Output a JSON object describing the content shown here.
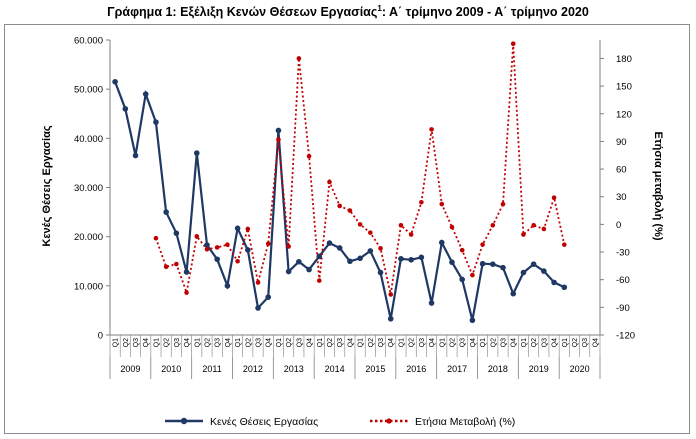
{
  "title": {
    "main": "Γράφημα 1: Εξέλιξη Κενών Θέσεων Εργασίας",
    "sup": "1",
    "rest": ": Α΄ τρίμηνο 2009 - Α΄ τρίμηνο 2020"
  },
  "chart_data": {
    "type": "line",
    "title": "Γράφημα 1: Εξέλιξη Κενών Θέσεων Εργασίας1: Α΄ τρίμηνο 2009 - Α΄ τρίμηνο 2020",
    "ylabel": "Κενές Θέσεις Εργασίας",
    "y2label": "Ετήσια μεταβολή (%)",
    "ylim": [
      0,
      60000
    ],
    "y2lim": [
      -120,
      200
    ],
    "yticks": [
      "0",
      "10.000",
      "20.000",
      "30.000",
      "40.000",
      "50.000",
      "60.000"
    ],
    "y2ticks": [
      "-120",
      "-90",
      "-60",
      "-30",
      "0",
      "30",
      "60",
      "90",
      "120",
      "150",
      "180"
    ],
    "y2tick_values": [
      -120,
      -90,
      -60,
      -30,
      0,
      30,
      60,
      90,
      120,
      150,
      180
    ],
    "quarters": [
      "Q1",
      "Q2",
      "Q3",
      "Q4"
    ],
    "years": [
      "2009",
      "2010",
      "2011",
      "2012",
      "2013",
      "2014",
      "2015",
      "2016",
      "2017",
      "2018",
      "2019",
      "2020"
    ],
    "grid": false,
    "legend_position": "bottom",
    "series": [
      {
        "name": "Κενές Θέσεις Εργασίας",
        "axis": "left",
        "color": "#1f3864",
        "style": "solid-markers",
        "values": [
          51500,
          46000,
          36500,
          49000,
          43300,
          25000,
          20700,
          12800,
          37000,
          18300,
          15400,
          10000,
          21700,
          17300,
          5500,
          7700,
          41600,
          12900,
          14900,
          13300,
          16000,
          18700,
          17700,
          15000,
          15600,
          17100,
          12700,
          3300,
          15500,
          15300,
          15800,
          6500,
          18800,
          14800,
          11300,
          3000,
          14500,
          14400,
          13700,
          8400,
          12700,
          14400,
          13000,
          10700,
          9700,
          null,
          null,
          null
        ]
      },
      {
        "name": "Ετήσια Μεταβολή (%)",
        "axis": "right",
        "color": "#c00000",
        "style": "dotted-markers",
        "values": [
          null,
          null,
          null,
          null,
          -15,
          -46,
          -43,
          -74,
          -13,
          -27,
          -25,
          -22,
          -40,
          -5,
          -63,
          -21,
          92,
          -24,
          180,
          74,
          -61,
          46,
          20,
          15,
          0,
          -9,
          -26,
          -76,
          -1,
          -11,
          24,
          103,
          22,
          -3,
          -28,
          -55,
          -22,
          -1,
          22,
          196,
          -11,
          -1,
          -5,
          29,
          -22,
          null,
          null,
          null
        ]
      }
    ]
  }
}
